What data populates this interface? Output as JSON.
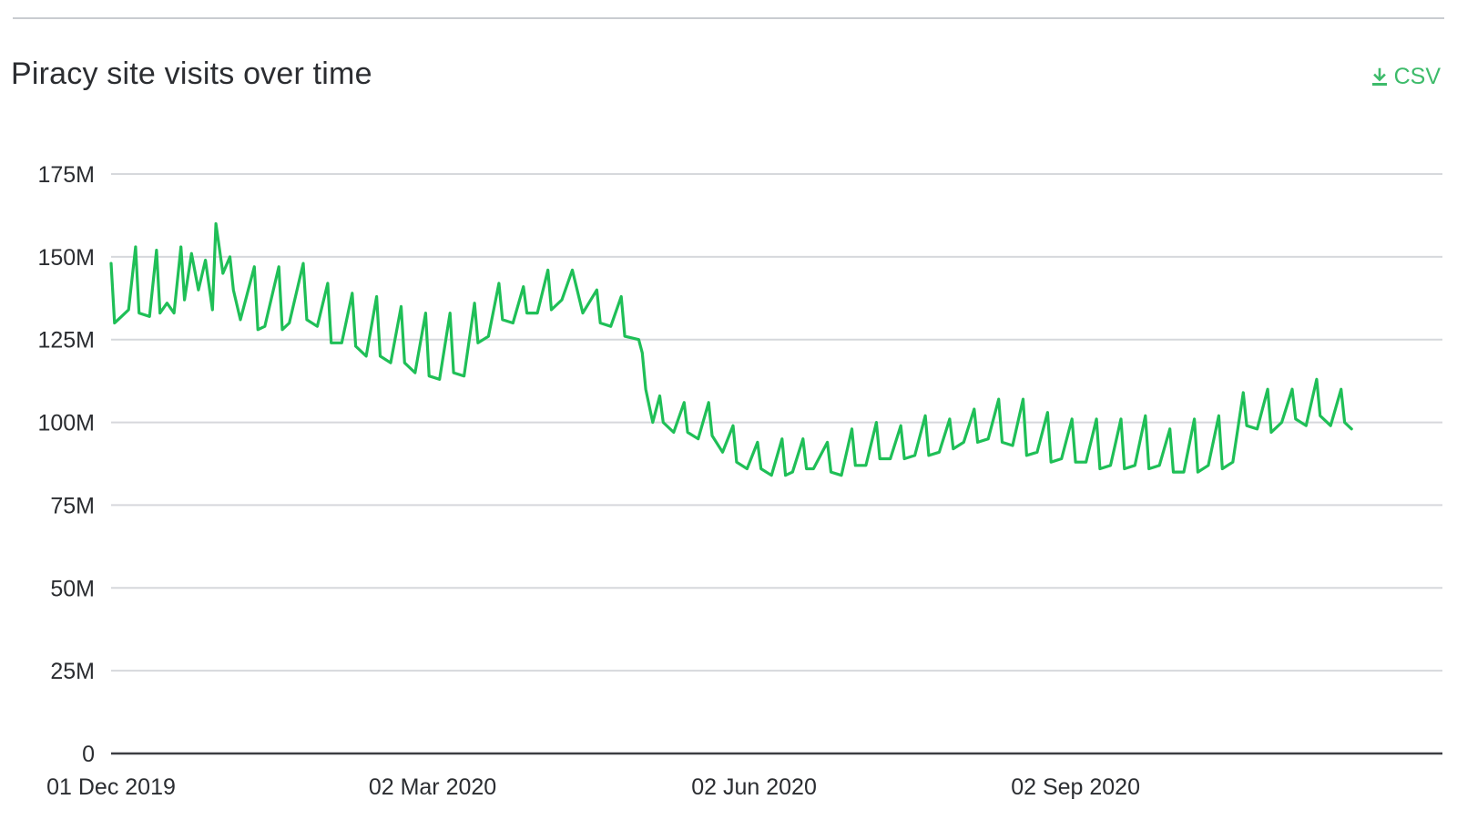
{
  "header": {
    "title": "Piracy site visits over time",
    "csv_label": "CSV",
    "csv_icon": "download-icon"
  },
  "colors": {
    "line": "#1fbf57",
    "grid": "#d6d8dc",
    "axis": "#3b3d42",
    "accent": "#3dbb6a"
  },
  "chart_data": {
    "type": "line",
    "title": "Piracy site visits over time",
    "xlabel": "",
    "ylabel": "",
    "ylim": [
      0,
      175000000
    ],
    "y_ticks": [
      0,
      25000000,
      50000000,
      75000000,
      100000000,
      125000000,
      150000000,
      175000000
    ],
    "y_tick_labels": [
      "0",
      "25M",
      "50M",
      "75M",
      "100M",
      "125M",
      "150M",
      "175M"
    ],
    "x_tick_labels": [
      "01 Dec 2019",
      "02 Mar 2020",
      "02 Jun 2020",
      "02 Sep 2020"
    ],
    "x_tick_dates": [
      "2019-12-01",
      "2020-03-02",
      "2020-06-02",
      "2020-09-02"
    ],
    "x_range": [
      "2019-12-01",
      "2020-12-16"
    ],
    "grid": true,
    "legend": "none",
    "series": [
      {
        "values": [
          [
            "2019-12-01",
            148000000
          ],
          [
            "2019-12-02",
            130000000
          ],
          [
            "2019-12-04",
            132000000
          ],
          [
            "2019-12-06",
            134000000
          ],
          [
            "2019-12-08",
            153000000
          ],
          [
            "2019-12-09",
            133000000
          ],
          [
            "2019-12-12",
            132000000
          ],
          [
            "2019-12-14",
            152000000
          ],
          [
            "2019-12-15",
            133000000
          ],
          [
            "2019-12-17",
            136000000
          ],
          [
            "2019-12-19",
            133000000
          ],
          [
            "2019-12-21",
            153000000
          ],
          [
            "2019-12-22",
            137000000
          ],
          [
            "2019-12-24",
            151000000
          ],
          [
            "2019-12-26",
            140000000
          ],
          [
            "2019-12-28",
            149000000
          ],
          [
            "2019-12-30",
            134000000
          ],
          [
            "2019-12-31",
            160000000
          ],
          [
            "2020-01-02",
            145000000
          ],
          [
            "2020-01-04",
            150000000
          ],
          [
            "2020-01-05",
            140000000
          ],
          [
            "2020-01-07",
            131000000
          ],
          [
            "2020-01-11",
            147000000
          ],
          [
            "2020-01-12",
            128000000
          ],
          [
            "2020-01-14",
            129000000
          ],
          [
            "2020-01-18",
            147000000
          ],
          [
            "2020-01-19",
            128000000
          ],
          [
            "2020-01-21",
            130000000
          ],
          [
            "2020-01-25",
            148000000
          ],
          [
            "2020-01-26",
            131000000
          ],
          [
            "2020-01-29",
            129000000
          ],
          [
            "2020-02-01",
            142000000
          ],
          [
            "2020-02-02",
            124000000
          ],
          [
            "2020-02-05",
            124000000
          ],
          [
            "2020-02-08",
            139000000
          ],
          [
            "2020-02-09",
            123000000
          ],
          [
            "2020-02-12",
            120000000
          ],
          [
            "2020-02-15",
            138000000
          ],
          [
            "2020-02-16",
            120000000
          ],
          [
            "2020-02-19",
            118000000
          ],
          [
            "2020-02-22",
            135000000
          ],
          [
            "2020-02-23",
            118000000
          ],
          [
            "2020-02-26",
            115000000
          ],
          [
            "2020-02-29",
            133000000
          ],
          [
            "2020-03-01",
            114000000
          ],
          [
            "2020-03-04",
            113000000
          ],
          [
            "2020-03-07",
            133000000
          ],
          [
            "2020-03-08",
            115000000
          ],
          [
            "2020-03-11",
            114000000
          ],
          [
            "2020-03-14",
            136000000
          ],
          [
            "2020-03-15",
            124000000
          ],
          [
            "2020-03-18",
            126000000
          ],
          [
            "2020-03-21",
            142000000
          ],
          [
            "2020-03-22",
            131000000
          ],
          [
            "2020-03-25",
            130000000
          ],
          [
            "2020-03-28",
            141000000
          ],
          [
            "2020-03-29",
            133000000
          ],
          [
            "2020-04-01",
            133000000
          ],
          [
            "2020-04-04",
            146000000
          ],
          [
            "2020-04-05",
            134000000
          ],
          [
            "2020-04-08",
            137000000
          ],
          [
            "2020-04-11",
            146000000
          ],
          [
            "2020-04-14",
            133000000
          ],
          [
            "2020-04-18",
            140000000
          ],
          [
            "2020-04-19",
            130000000
          ],
          [
            "2020-04-22",
            129000000
          ],
          [
            "2020-04-25",
            138000000
          ],
          [
            "2020-04-26",
            126000000
          ],
          [
            "2020-04-30",
            125000000
          ],
          [
            "2020-05-01",
            121000000
          ],
          [
            "2020-05-02",
            110000000
          ],
          [
            "2020-05-04",
            100000000
          ],
          [
            "2020-05-06",
            108000000
          ],
          [
            "2020-05-07",
            100000000
          ],
          [
            "2020-05-10",
            97000000
          ],
          [
            "2020-05-13",
            106000000
          ],
          [
            "2020-05-14",
            97000000
          ],
          [
            "2020-05-17",
            95000000
          ],
          [
            "2020-05-20",
            106000000
          ],
          [
            "2020-05-21",
            96000000
          ],
          [
            "2020-05-24",
            91000000
          ],
          [
            "2020-05-27",
            99000000
          ],
          [
            "2020-05-28",
            88000000
          ],
          [
            "2020-05-31",
            86000000
          ],
          [
            "2020-06-03",
            94000000
          ],
          [
            "2020-06-04",
            86000000
          ],
          [
            "2020-06-07",
            84000000
          ],
          [
            "2020-06-10",
            95000000
          ],
          [
            "2020-06-11",
            84000000
          ],
          [
            "2020-06-13",
            85000000
          ],
          [
            "2020-06-16",
            95000000
          ],
          [
            "2020-06-17",
            86000000
          ],
          [
            "2020-06-19",
            86000000
          ],
          [
            "2020-06-23",
            94000000
          ],
          [
            "2020-06-24",
            85000000
          ],
          [
            "2020-06-27",
            84000000
          ],
          [
            "2020-06-30",
            98000000
          ],
          [
            "2020-07-01",
            87000000
          ],
          [
            "2020-07-04",
            87000000
          ],
          [
            "2020-07-07",
            100000000
          ],
          [
            "2020-07-08",
            89000000
          ],
          [
            "2020-07-11",
            89000000
          ],
          [
            "2020-07-14",
            99000000
          ],
          [
            "2020-07-15",
            89000000
          ],
          [
            "2020-07-18",
            90000000
          ],
          [
            "2020-07-21",
            102000000
          ],
          [
            "2020-07-22",
            90000000
          ],
          [
            "2020-07-25",
            91000000
          ],
          [
            "2020-07-28",
            101000000
          ],
          [
            "2020-07-29",
            92000000
          ],
          [
            "2020-08-01",
            94000000
          ],
          [
            "2020-08-04",
            104000000
          ],
          [
            "2020-08-05",
            94000000
          ],
          [
            "2020-08-08",
            95000000
          ],
          [
            "2020-08-11",
            107000000
          ],
          [
            "2020-08-12",
            94000000
          ],
          [
            "2020-08-15",
            93000000
          ],
          [
            "2020-08-18",
            107000000
          ],
          [
            "2020-08-19",
            90000000
          ],
          [
            "2020-08-22",
            91000000
          ],
          [
            "2020-08-25",
            103000000
          ],
          [
            "2020-08-26",
            88000000
          ],
          [
            "2020-08-29",
            89000000
          ],
          [
            "2020-09-01",
            101000000
          ],
          [
            "2020-09-02",
            88000000
          ],
          [
            "2020-09-05",
            88000000
          ],
          [
            "2020-09-08",
            101000000
          ],
          [
            "2020-09-09",
            86000000
          ],
          [
            "2020-09-12",
            87000000
          ],
          [
            "2020-09-15",
            101000000
          ],
          [
            "2020-09-16",
            86000000
          ],
          [
            "2020-09-19",
            87000000
          ],
          [
            "2020-09-22",
            102000000
          ],
          [
            "2020-09-23",
            86000000
          ],
          [
            "2020-09-26",
            87000000
          ],
          [
            "2020-09-29",
            98000000
          ],
          [
            "2020-09-30",
            85000000
          ],
          [
            "2020-10-03",
            85000000
          ],
          [
            "2020-10-06",
            101000000
          ],
          [
            "2020-10-07",
            85000000
          ],
          [
            "2020-10-10",
            87000000
          ],
          [
            "2020-10-13",
            102000000
          ],
          [
            "2020-10-14",
            86000000
          ],
          [
            "2020-10-17",
            88000000
          ],
          [
            "2020-10-20",
            109000000
          ],
          [
            "2020-10-21",
            99000000
          ],
          [
            "2020-10-24",
            98000000
          ],
          [
            "2020-10-27",
            110000000
          ],
          [
            "2020-10-28",
            97000000
          ],
          [
            "2020-10-31",
            100000000
          ],
          [
            "2020-11-03",
            110000000
          ],
          [
            "2020-11-04",
            101000000
          ],
          [
            "2020-11-07",
            99000000
          ],
          [
            "2020-11-10",
            113000000
          ],
          [
            "2020-11-11",
            102000000
          ],
          [
            "2020-11-14",
            99000000
          ],
          [
            "2020-11-17",
            110000000
          ],
          [
            "2020-11-18",
            100000000
          ],
          [
            "2020-11-20",
            98000000
          ]
        ]
      }
    ]
  }
}
